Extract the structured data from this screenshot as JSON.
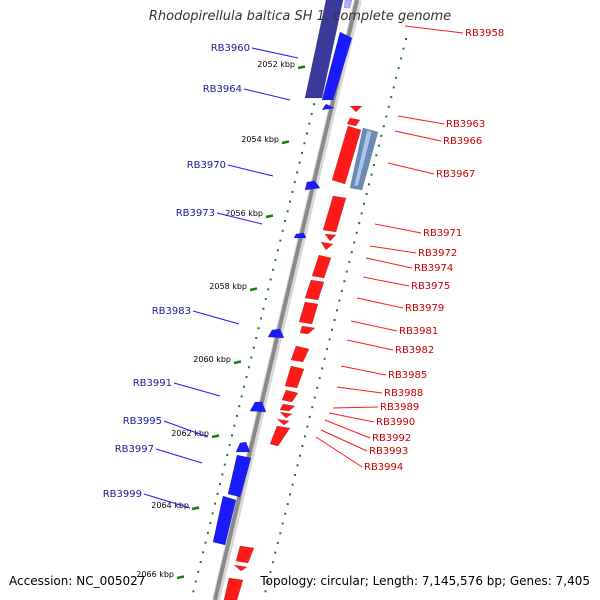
{
  "title": "Rhodopirellula baltica SH 1, complete genome",
  "footer": {
    "accession": "Accession: NC_005027",
    "topology": "Topology: circular; Length: 7,145,576 bp; Genes: 7,405"
  },
  "colors": {
    "forward_gene": "#1a1aff",
    "reverse_gene": "#ff1a1a",
    "forward_label": "#1a1a9a",
    "reverse_label": "#cc0000",
    "backbone": "#8a8a8a",
    "tick": "#1a7a1a"
  },
  "ticks": [
    "2052 kbp",
    "2054 kbp",
    "2056 kbp",
    "2058 kbp",
    "2060 kbp",
    "2062 kbp",
    "2064 kbp",
    "2066 kbp"
  ],
  "forward_genes": [
    "RB3960",
    "RB3964",
    "RB3970",
    "RB3973",
    "RB3983",
    "RB3991",
    "RB3995",
    "RB3997",
    "RB3999"
  ],
  "reverse_genes": [
    "RB3958",
    "RB3963",
    "RB3966",
    "RB3967",
    "RB3971",
    "RB3972",
    "RB3974",
    "RB3975",
    "RB3979",
    "RB3981",
    "RB3982",
    "RB3985",
    "RB3988",
    "RB3989",
    "RB3990",
    "RB3992",
    "RB3993",
    "RB3994"
  ]
}
